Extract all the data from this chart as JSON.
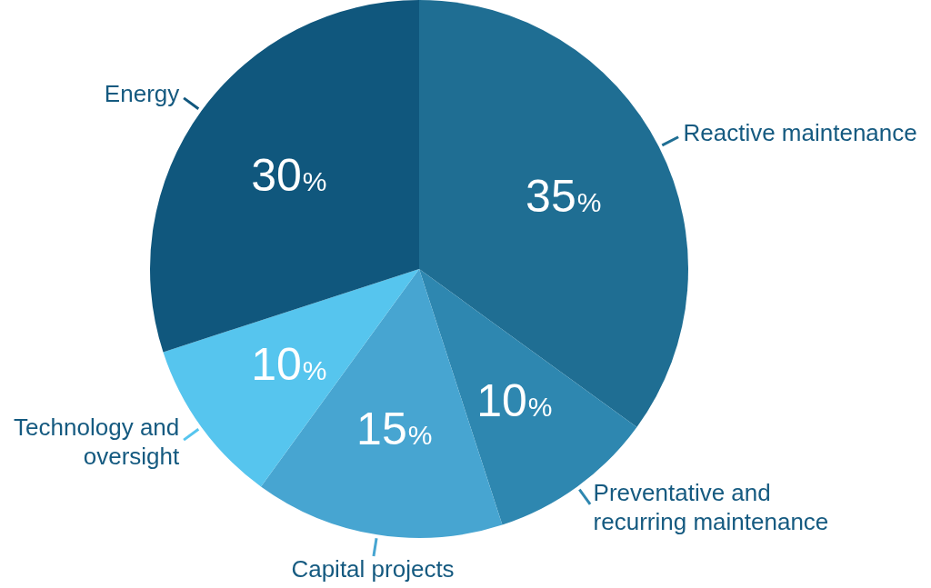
{
  "chart_data": {
    "type": "pie",
    "categories": [
      "Reactive maintenance",
      "Preventative and recurring maintenance",
      "Capital projects",
      "Technology and oversight",
      "Energy"
    ],
    "values": [
      35,
      10,
      15,
      10,
      30
    ],
    "value_labels": [
      "35%",
      "10%",
      "15%",
      "10%",
      "30%"
    ],
    "colors": [
      "#1f6e93",
      "#2e87b0",
      "#47a5d1",
      "#56c5ee",
      "#10577d"
    ],
    "legend": false
  }
}
